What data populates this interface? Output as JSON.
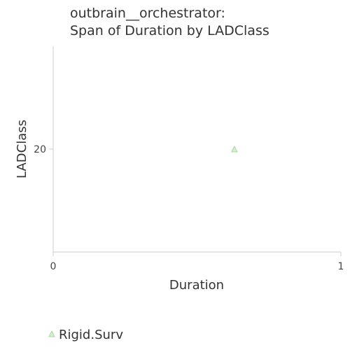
{
  "chart_data": {
    "type": "scatter",
    "title": "outbrain__orchestrator:",
    "subtitle": "Span of Duration by LADClass",
    "xlabel": "Duration",
    "ylabel": "LADClass",
    "xlim": [
      0,
      1
    ],
    "ylim": [
      0,
      40
    ],
    "x_ticks": [
      "0",
      "1"
    ],
    "y_ticks": [
      "20"
    ],
    "grid": false,
    "legend_position": "bottom-left",
    "series": [
      {
        "name": "Rigid.Surv",
        "marker": "triangle",
        "color": "#a8d8a0",
        "points": [
          {
            "x": 0.63,
            "y": 20
          }
        ]
      }
    ]
  }
}
